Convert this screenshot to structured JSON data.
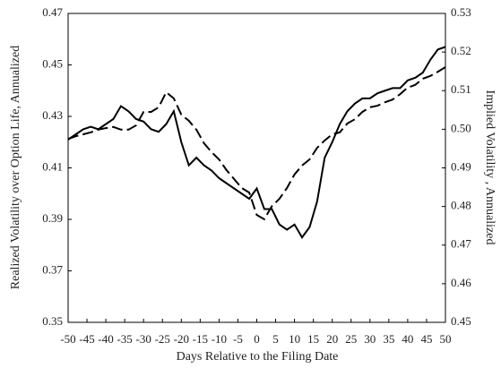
{
  "chart_data": {
    "type": "line",
    "xlabel": "Days Relative to the Filing Date",
    "ylabel": "Realized Volatility over Option Life, Annualized",
    "y2label": "Implied Volatility , Annualized",
    "x": [
      -50,
      -48,
      -46,
      -44,
      -42,
      -40,
      -38,
      -36,
      -34,
      -32,
      -30,
      -28,
      -26,
      -24,
      -22,
      -20,
      -18,
      -16,
      -14,
      -12,
      -10,
      -8,
      -6,
      -4,
      -2,
      0,
      2,
      4,
      6,
      8,
      10,
      12,
      14,
      16,
      18,
      20,
      22,
      24,
      26,
      28,
      30,
      32,
      34,
      36,
      38,
      40,
      42,
      44,
      46,
      48,
      50
    ],
    "series": [
      {
        "color": "#000000",
        "dash": false,
        "axis": "y",
        "values": [
          0.421,
          0.423,
          0.425,
          0.426,
          0.425,
          0.427,
          0.429,
          0.434,
          0.432,
          0.429,
          0.428,
          0.425,
          0.424,
          0.427,
          0.432,
          0.42,
          0.411,
          0.414,
          0.411,
          0.409,
          0.406,
          0.404,
          0.402,
          0.4,
          0.398,
          0.402,
          0.394,
          0.394,
          0.388,
          0.386,
          0.388,
          0.383,
          0.387,
          0.397,
          0.414,
          0.42,
          0.427,
          0.432,
          0.435,
          0.437,
          0.437,
          0.439,
          0.44,
          0.441,
          0.441,
          0.444,
          0.445,
          0.447,
          0.452,
          0.456,
          0.457
        ]
      },
      {
        "color": "#000000",
        "dash": true,
        "axis": "y2",
        "values": [
          0.4975,
          0.4982,
          0.4987,
          0.4992,
          0.4999,
          0.5003,
          0.5006,
          0.4999,
          0.4999,
          0.501,
          0.5045,
          0.5045,
          0.5057,
          0.5096,
          0.508,
          0.5038,
          0.5022,
          0.4999,
          0.4964,
          0.4941,
          0.4922,
          0.4894,
          0.4871,
          0.4848,
          0.4836,
          0.4778,
          0.4767,
          0.4801,
          0.482,
          0.4848,
          0.4883,
          0.4906,
          0.4922,
          0.4952,
          0.4971,
          0.4987,
          0.4992,
          0.5015,
          0.5026,
          0.5045,
          0.5057,
          0.5061,
          0.507,
          0.5077,
          0.5091,
          0.5108,
          0.5115,
          0.5131,
          0.5138,
          0.5149,
          0.5161
        ]
      }
    ],
    "xlim": [
      -50,
      50
    ],
    "xticks": [
      -50,
      -45,
      -40,
      -35,
      -30,
      -25,
      -20,
      -15,
      -10,
      -5,
      0,
      5,
      10,
      15,
      20,
      25,
      30,
      35,
      40,
      45,
      50
    ],
    "ylim": [
      0.35,
      0.47
    ],
    "yticks": [
      0.35,
      0.37,
      0.39,
      0.41,
      0.43,
      0.45,
      0.47
    ],
    "y2lim": [
      0.45,
      0.53
    ],
    "y2ticks": [
      0.45,
      0.46,
      0.47,
      0.48,
      0.49,
      {
        "value": 0.5,
        "label": "0.50"
      },
      0.51,
      0.52,
      0.53
    ],
    "grid": false
  }
}
